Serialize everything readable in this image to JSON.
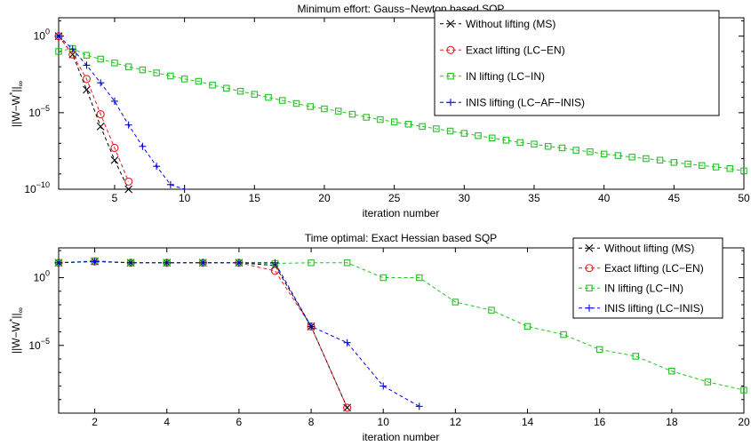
{
  "chart_data": [
    {
      "type": "line",
      "title": "Minimum effort: Gauss−Newton based SQP",
      "xlabel": "iteration number",
      "ylabel_text": "||W−W",
      "ylabel_sup": "*",
      "ylabel_tail": "||",
      "ylabel_sub": "∞",
      "xlim": [
        1,
        50
      ],
      "ylim_log10": [
        -10,
        1.2
      ],
      "yscale": "log",
      "xticks": [
        5,
        10,
        15,
        20,
        25,
        30,
        35,
        40,
        45,
        50
      ],
      "xtick_labels": [
        "5",
        "10",
        "15",
        "20",
        "25",
        "30",
        "35",
        "40",
        "45",
        "50"
      ],
      "ytick_exponents": [
        0,
        -5,
        -10
      ],
      "ytick_base": "10",
      "ytick_exp_labels": [
        "0",
        "−5",
        "−10"
      ],
      "legend_placement": "top-right",
      "series": [
        {
          "name": "Without lifting (MS)",
          "color": "#000000",
          "marker": "x",
          "x": [
            1,
            2,
            3,
            4,
            5,
            6
          ],
          "log10y": [
            0.0,
            -1.2,
            -3.5,
            -5.9,
            -8.1,
            -10.0
          ]
        },
        {
          "name": "Exact lifting (LC−EN)",
          "color": "#e41a1c",
          "marker": "o",
          "x": [
            1,
            2,
            3,
            4,
            5,
            6
          ],
          "log10y": [
            0.0,
            -1.2,
            -2.8,
            -5.1,
            -7.3,
            -9.5
          ]
        },
        {
          "name": "IN lifting (LC−IN)",
          "color": "#22c322",
          "marker": "s",
          "x": [
            1,
            2,
            3,
            4,
            5,
            6,
            7,
            8,
            9,
            10,
            11,
            12,
            13,
            14,
            15,
            16,
            17,
            18,
            19,
            20,
            21,
            22,
            23,
            24,
            25,
            26,
            27,
            28,
            29,
            30,
            31,
            32,
            33,
            34,
            35,
            36,
            37,
            38,
            39,
            40,
            41,
            42,
            43,
            44,
            45,
            46,
            47,
            48,
            49,
            50
          ],
          "log10y": [
            -1.0,
            -0.8,
            -1.25,
            -1.5,
            -1.75,
            -2.0,
            -2.2,
            -2.4,
            -2.6,
            -2.8,
            -2.95,
            -3.2,
            -3.4,
            -3.6,
            -3.8,
            -4.0,
            -4.2,
            -4.4,
            -4.6,
            -4.75,
            -4.9,
            -5.1,
            -5.3,
            -5.45,
            -5.6,
            -5.75,
            -5.9,
            -6.05,
            -6.2,
            -6.35,
            -6.5,
            -6.65,
            -6.8,
            -6.95,
            -7.05,
            -7.2,
            -7.3,
            -7.45,
            -7.55,
            -7.7,
            -7.8,
            -7.9,
            -8.0,
            -8.1,
            -8.25,
            -8.35,
            -8.45,
            -8.55,
            -8.65,
            -8.8
          ]
        },
        {
          "name": "INIS lifting (LC−AF−INIS)",
          "color": "#0000e0",
          "marker": "+",
          "x": [
            1,
            2,
            3,
            4,
            5,
            6,
            7,
            8,
            9,
            10
          ],
          "log10y": [
            0.0,
            -0.85,
            -1.9,
            -3.05,
            -4.25,
            -5.8,
            -7.2,
            -8.5,
            -9.7,
            -10.0
          ]
        }
      ]
    },
    {
      "type": "line",
      "title": "Time optimal: Exact Hessian based SQP",
      "xlabel": "iteration number",
      "ylabel_text": "||W−W",
      "ylabel_sup": "*",
      "ylabel_tail": "||",
      "ylabel_sub": "∞",
      "xlim": [
        1,
        20
      ],
      "ylim_log10": [
        -10,
        2.2
      ],
      "yscale": "log",
      "xticks": [
        2,
        4,
        6,
        8,
        10,
        12,
        14,
        16,
        18,
        20
      ],
      "xtick_labels": [
        "2",
        "4",
        "6",
        "8",
        "10",
        "12",
        "14",
        "16",
        "18",
        "20"
      ],
      "ytick_exponents": [
        0,
        -5
      ],
      "ytick_base": "10",
      "ytick_exp_labels": [
        "0",
        "−5"
      ],
      "legend_placement": "top-right",
      "series": [
        {
          "name": "Without lifting (MS)",
          "color": "#000000",
          "marker": "x",
          "x": [
            1,
            2,
            3,
            4,
            5,
            6,
            7,
            8,
            9
          ],
          "log10y": [
            1.1,
            1.2,
            1.1,
            1.1,
            1.1,
            1.1,
            0.9,
            -3.6,
            -9.6
          ]
        },
        {
          "name": "Exact lifting (LC−EN)",
          "color": "#e41a1c",
          "marker": "o",
          "x": [
            1,
            2,
            3,
            4,
            5,
            6,
            7,
            8,
            9
          ],
          "log10y": [
            1.1,
            1.2,
            1.1,
            1.1,
            1.1,
            1.1,
            0.5,
            -3.6,
            -9.6
          ]
        },
        {
          "name": "IN lifting (LC−IN)",
          "color": "#22c322",
          "marker": "s",
          "x": [
            1,
            2,
            3,
            4,
            5,
            6,
            7,
            8,
            9,
            10,
            11,
            12,
            13,
            14,
            15,
            16,
            17,
            18,
            19,
            20
          ],
          "log10y": [
            1.1,
            1.25,
            1.1,
            1.1,
            1.1,
            1.1,
            1.05,
            1.1,
            1.1,
            0.0,
            0.0,
            -1.8,
            -2.4,
            -3.6,
            -4.2,
            -5.3,
            -5.8,
            -6.9,
            -7.7,
            -8.3
          ]
        },
        {
          "name": "INIS lifting (LC−INIS)",
          "color": "#0000e0",
          "marker": "+",
          "x": [
            1,
            2,
            3,
            4,
            5,
            6,
            7,
            8,
            9,
            10,
            11
          ],
          "log10y": [
            1.1,
            1.2,
            1.1,
            1.1,
            1.1,
            1.1,
            1.1,
            -3.6,
            -4.8,
            -8.0,
            -9.5
          ]
        }
      ]
    }
  ]
}
